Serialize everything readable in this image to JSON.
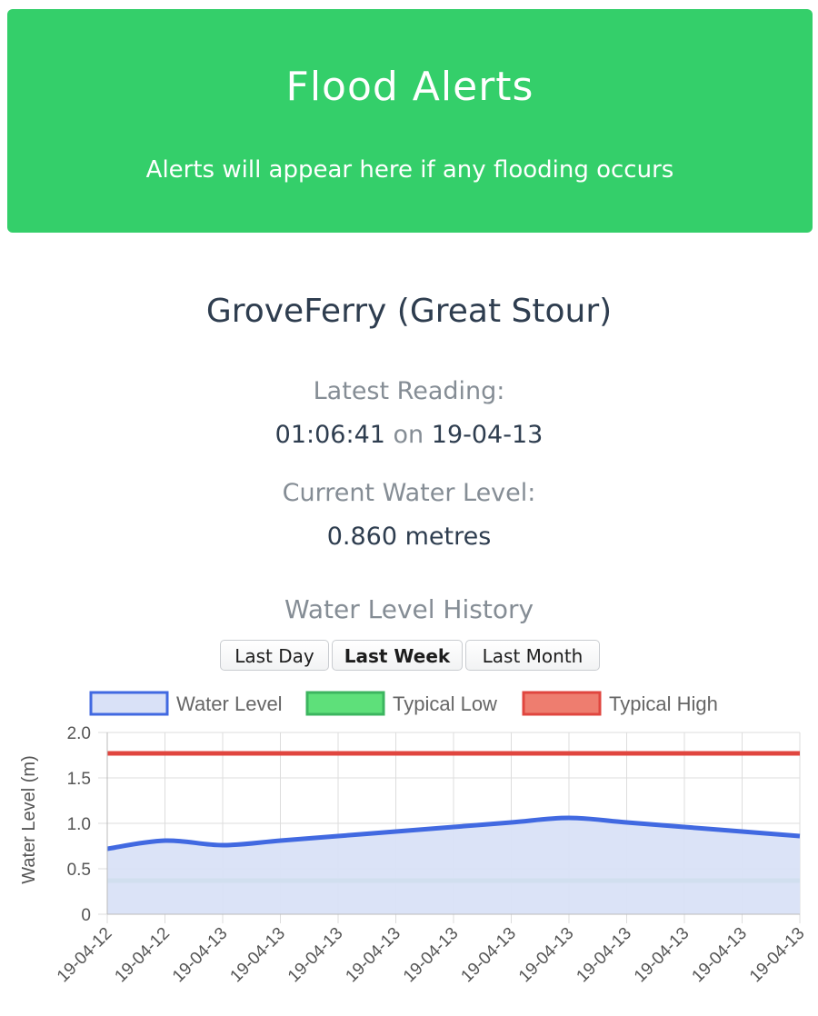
{
  "alert": {
    "title": "Flood Alerts",
    "message": "Alerts will appear here if any flooding occurs",
    "color": "#34cf6a"
  },
  "station": {
    "name": "GroveFerry (Great Stour)"
  },
  "latest_reading": {
    "label": "Latest Reading:",
    "time": "01:06:41",
    "connector": "on",
    "date": "19-04-13"
  },
  "current_level": {
    "label": "Current Water Level:",
    "value": "0.860 metres"
  },
  "history": {
    "title": "Water Level History",
    "buttons": [
      {
        "label": "Last Day",
        "active": false
      },
      {
        "label": "Last Week",
        "active": true
      },
      {
        "label": "Last Month",
        "active": false
      }
    ]
  },
  "chart_data": {
    "type": "line",
    "ylabel": "Water Level (m)",
    "ylim": [
      0,
      2.0
    ],
    "y_ticks": [
      "0",
      "0.5",
      "1.0",
      "1.5",
      "2.0"
    ],
    "grid": true,
    "legend_position": "top",
    "x": [
      "19-04-12",
      "19-04-12",
      "19-04-13",
      "19-04-13",
      "19-04-13",
      "19-04-13",
      "19-04-13",
      "19-04-13",
      "19-04-13",
      "19-04-13",
      "19-04-13",
      "19-04-13",
      "19-04-13"
    ],
    "series": [
      {
        "name": "Water Level",
        "color": "#4169e1",
        "fill": "#d9e1f7",
        "values": [
          0.72,
          0.81,
          0.76,
          0.81,
          0.86,
          0.91,
          0.96,
          1.01,
          1.06,
          1.01,
          0.96,
          0.91,
          0.86
        ]
      },
      {
        "name": "Typical Low",
        "color": "#3cb55f",
        "legend_fill": "#5ee07a",
        "values": [
          0.37,
          0.37,
          0.37,
          0.37,
          0.37,
          0.37,
          0.37,
          0.37,
          0.37,
          0.37,
          0.37,
          0.37,
          0.37
        ]
      },
      {
        "name": "Typical High",
        "color": "#e0463f",
        "legend_fill": "#ee7d6f",
        "values": [
          1.77,
          1.77,
          1.77,
          1.77,
          1.77,
          1.77,
          1.77,
          1.77,
          1.77,
          1.77,
          1.77,
          1.77,
          1.77
        ]
      }
    ]
  }
}
